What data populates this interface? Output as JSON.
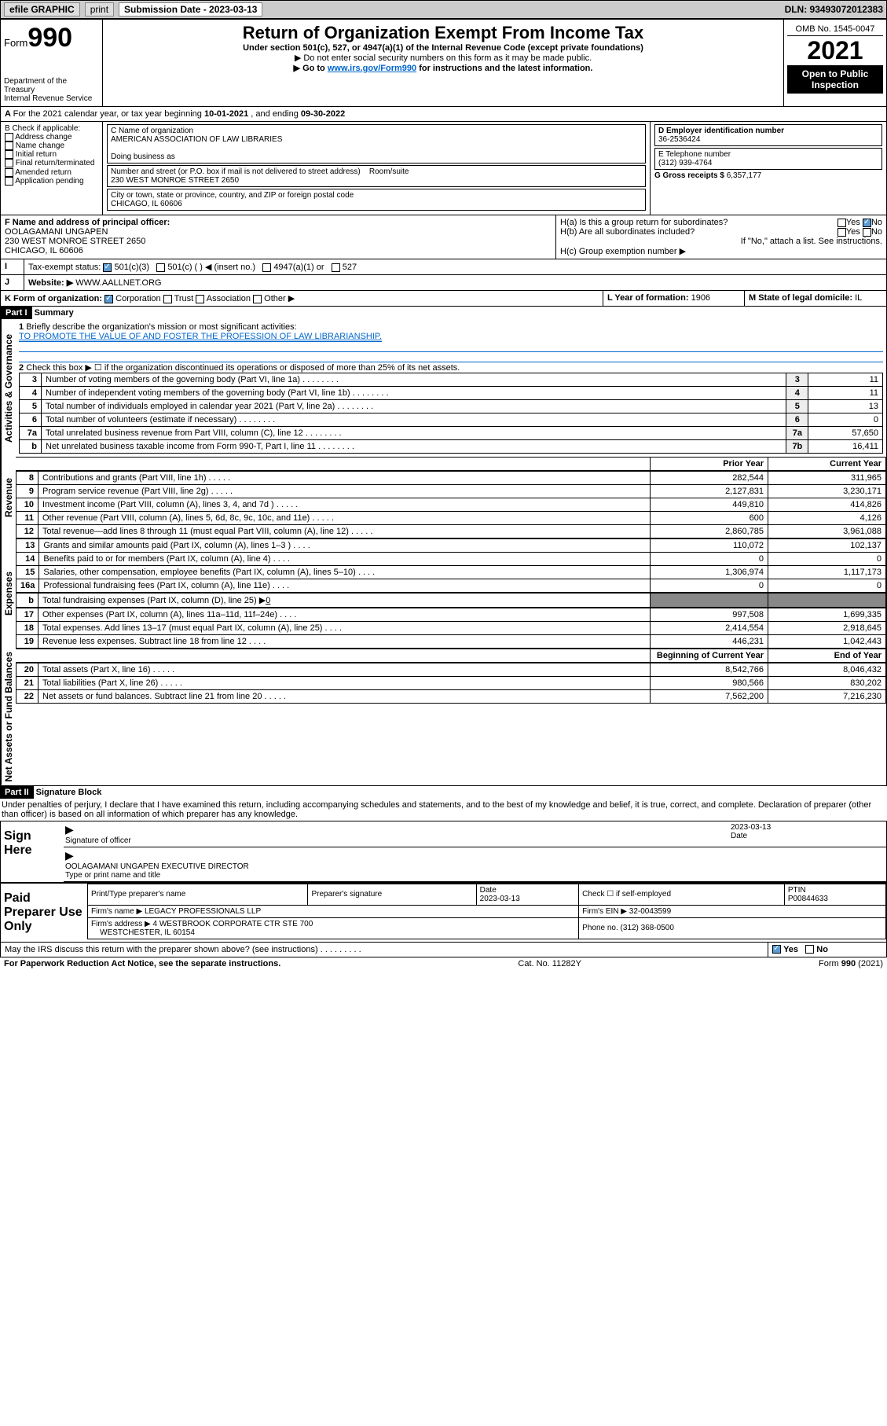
{
  "topbar": {
    "efile": "efile GRAPHIC",
    "print": "print",
    "subdate_label": "Submission Date - 2023-03-13",
    "dln": "DLN: 93493072012383"
  },
  "header": {
    "form_label": "Form",
    "form_num": "990",
    "dept": "Department of the Treasury",
    "irs": "Internal Revenue Service",
    "title": "Return of Organization Exempt From Income Tax",
    "sub1": "Under section 501(c), 527, or 4947(a)(1) of the Internal Revenue Code (except private foundations)",
    "sub2": "▶ Do not enter social security numbers on this form as it may be made public.",
    "sub3_pre": "▶ Go to ",
    "sub3_link": "www.irs.gov/Form990",
    "sub3_post": " for instructions and the latest information.",
    "omb": "OMB No. 1545-0047",
    "year": "2021",
    "openpub": "Open to Public Inspection"
  },
  "periodA": {
    "text_pre": "For the 2021 calendar year, or tax year beginning ",
    "begin": "10-01-2021",
    "mid": " , and ending ",
    "end": "09-30-2022"
  },
  "boxB": {
    "label": "B Check if applicable:",
    "opts": [
      "Address change",
      "Name change",
      "Initial return",
      "Final return/terminated",
      "Amended return",
      "Application pending"
    ]
  },
  "boxC": {
    "name_lbl": "C Name of organization",
    "name": "AMERICAN ASSOCIATION OF LAW LIBRARIES",
    "dba_lbl": "Doing business as",
    "addr_lbl": "Number and street (or P.O. box if mail is not delivered to street address)",
    "room_lbl": "Room/suite",
    "addr": "230 WEST MONROE STREET 2650",
    "city_lbl": "City or town, state or province, country, and ZIP or foreign postal code",
    "city": "CHICAGO, IL  60606"
  },
  "boxD": {
    "lbl": "D Employer identification number",
    "val": "36-2536424"
  },
  "boxE": {
    "lbl": "E Telephone number",
    "val": "(312) 939-4764"
  },
  "boxG": {
    "lbl": "G Gross receipts $",
    "val": "6,357,177"
  },
  "boxF": {
    "lbl": "F Name and address of principal officer:",
    "name": "OOLAGAMANI UNGAPEN",
    "addr": "230 WEST MONROE STREET 2650",
    "city": "CHICAGO, IL  60606"
  },
  "boxH": {
    "a": "H(a)  Is this a group return for subordinates?",
    "b": "H(b)  Are all subordinates included?",
    "bnote": "If \"No,\" attach a list. See instructions.",
    "c": "H(c)  Group exemption number ▶",
    "yes": "Yes",
    "no": "No"
  },
  "boxI": {
    "lbl": "Tax-exempt status:",
    "o1": "501(c)(3)",
    "o2": "501(c) (  ) ◀ (insert no.)",
    "o3": "4947(a)(1) or",
    "o4": "527"
  },
  "boxJ": {
    "lbl": "Website: ▶",
    "val": "WWW.AALLNET.ORG"
  },
  "boxK": {
    "lbl": "K Form of organization:",
    "o1": "Corporation",
    "o2": "Trust",
    "o3": "Association",
    "o4": "Other ▶"
  },
  "boxL": {
    "lbl": "L Year of formation:",
    "val": "1906"
  },
  "boxM": {
    "lbl": "M State of legal domicile:",
    "val": "IL"
  },
  "part1": {
    "hdr": "Part I",
    "title": "Summary",
    "l1": "Briefly describe the organization's mission or most significant activities:",
    "l1v": "TO PROMOTE THE VALUE OF AND FOSTER THE PROFESSION OF LAW LIBRARIANSHIP.",
    "l2": "Check this box ▶ ☐  if the organization discontinued its operations or disposed of more than 25% of its net assets.",
    "vlabels": {
      "ag": "Activities & Governance",
      "rev": "Revenue",
      "exp": "Expenses",
      "na": "Net Assets or Fund Balances"
    },
    "rows_ag": [
      {
        "n": "3",
        "t": "Number of voting members of the governing body (Part VI, line 1a)",
        "box": "3",
        "v": "11"
      },
      {
        "n": "4",
        "t": "Number of independent voting members of the governing body (Part VI, line 1b)",
        "box": "4",
        "v": "11"
      },
      {
        "n": "5",
        "t": "Total number of individuals employed in calendar year 2021 (Part V, line 2a)",
        "box": "5",
        "v": "13"
      },
      {
        "n": "6",
        "t": "Total number of volunteers (estimate if necessary)",
        "box": "6",
        "v": "0"
      },
      {
        "n": "7a",
        "t": "Total unrelated business revenue from Part VIII, column (C), line 12",
        "box": "7a",
        "v": "57,650"
      },
      {
        "n": "b",
        "t": "Net unrelated business taxable income from Form 990-T, Part I, line 11",
        "box": "7b",
        "v": "16,411"
      }
    ],
    "colhdr": {
      "prior": "Prior Year",
      "cur": "Current Year"
    },
    "rows_rev": [
      {
        "n": "8",
        "t": "Contributions and grants (Part VIII, line 1h)",
        "p": "282,544",
        "c": "311,965"
      },
      {
        "n": "9",
        "t": "Program service revenue (Part VIII, line 2g)",
        "p": "2,127,831",
        "c": "3,230,171"
      },
      {
        "n": "10",
        "t": "Investment income (Part VIII, column (A), lines 3, 4, and 7d )",
        "p": "449,810",
        "c": "414,826"
      },
      {
        "n": "11",
        "t": "Other revenue (Part VIII, column (A), lines 5, 6d, 8c, 9c, 10c, and 11e)",
        "p": "600",
        "c": "4,126"
      },
      {
        "n": "12",
        "t": "Total revenue—add lines 8 through 11 (must equal Part VIII, column (A), line 12)",
        "p": "2,860,785",
        "c": "3,961,088"
      }
    ],
    "rows_exp": [
      {
        "n": "13",
        "t": "Grants and similar amounts paid (Part IX, column (A), lines 1–3 )",
        "p": "110,072",
        "c": "102,137"
      },
      {
        "n": "14",
        "t": "Benefits paid to or for members (Part IX, column (A), line 4)",
        "p": "0",
        "c": "0"
      },
      {
        "n": "15",
        "t": "Salaries, other compensation, employee benefits (Part IX, column (A), lines 5–10)",
        "p": "1,306,974",
        "c": "1,117,173"
      },
      {
        "n": "16a",
        "t": "Professional fundraising fees (Part IX, column (A), line 11e)",
        "p": "0",
        "c": "0"
      }
    ],
    "row16b": {
      "n": "b",
      "t": "Total fundraising expenses (Part IX, column (D), line 25) ▶",
      "v": "0"
    },
    "rows_exp2": [
      {
        "n": "17",
        "t": "Other expenses (Part IX, column (A), lines 11a–11d, 11f–24e)",
        "p": "997,508",
        "c": "1,699,335"
      },
      {
        "n": "18",
        "t": "Total expenses. Add lines 13–17 (must equal Part IX, column (A), line 25)",
        "p": "2,414,554",
        "c": "2,918,645"
      },
      {
        "n": "19",
        "t": "Revenue less expenses. Subtract line 18 from line 12",
        "p": "446,231",
        "c": "1,042,443"
      }
    ],
    "colhdr2": {
      "prior": "Beginning of Current Year",
      "cur": "End of Year"
    },
    "rows_na": [
      {
        "n": "20",
        "t": "Total assets (Part X, line 16)",
        "p": "8,542,766",
        "c": "8,046,432"
      },
      {
        "n": "21",
        "t": "Total liabilities (Part X, line 26)",
        "p": "980,566",
        "c": "830,202"
      },
      {
        "n": "22",
        "t": "Net assets or fund balances. Subtract line 21 from line 20",
        "p": "7,562,200",
        "c": "7,216,230"
      }
    ]
  },
  "part2": {
    "hdr": "Part II",
    "title": "Signature Block",
    "decl": "Under penalties of perjury, I declare that I have examined this return, including accompanying schedules and statements, and to the best of my knowledge and belief, it is true, correct, and complete. Declaration of preparer (other than officer) is based on all information of which preparer has any knowledge.",
    "sign_here": "Sign Here",
    "sig_officer": "Signature of officer",
    "date_lbl": "Date",
    "date": "2023-03-13",
    "typed": "OOLAGAMANI UNGAPEN  EXECUTIVE DIRECTOR",
    "typed_lbl": "Type or print name and title"
  },
  "paid": {
    "side": "Paid Preparer Use Only",
    "h1": "Print/Type preparer's name",
    "h2": "Preparer's signature",
    "h3": "Date",
    "h3v": "2023-03-13",
    "h4": "Check ☐ if self-employed",
    "h5": "PTIN",
    "h5v": "P00844633",
    "firm_lbl": "Firm's name   ▶",
    "firm": "LEGACY PROFESSIONALS LLP",
    "ein_lbl": "Firm's EIN ▶",
    "ein": "32-0043599",
    "addr_lbl": "Firm's address ▶",
    "addr": "4 WESTBROOK CORPORATE CTR STE 700",
    "addr2": "WESTCHESTER, IL  60154",
    "phone_lbl": "Phone no.",
    "phone": "(312) 368-0500"
  },
  "discuss": {
    "q": "May the IRS discuss this return with the preparer shown above? (see instructions)",
    "yes": "Yes",
    "no": "No"
  },
  "footer": {
    "pra": "For Paperwork Reduction Act Notice, see the separate instructions.",
    "cat": "Cat. No. 11282Y",
    "form": "Form 990 (2021)"
  }
}
